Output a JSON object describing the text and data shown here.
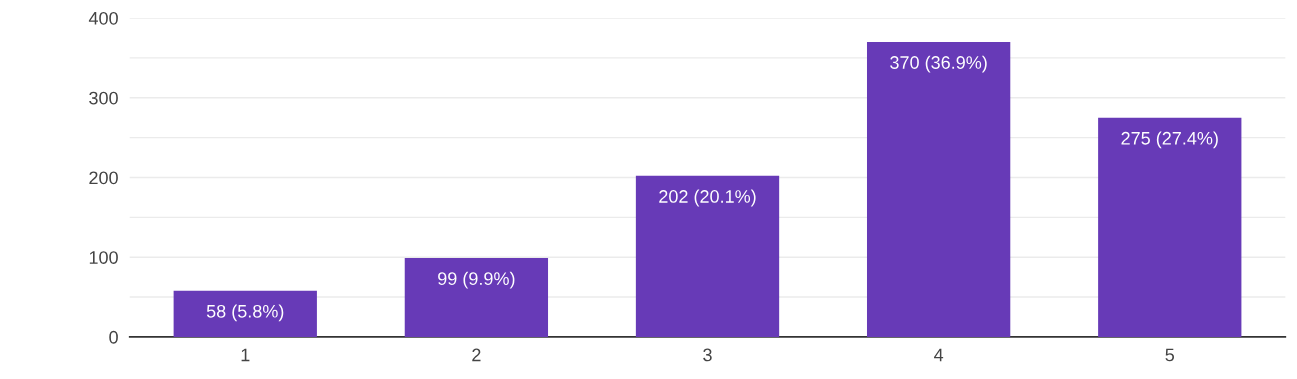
{
  "chart_data": {
    "type": "bar",
    "categories": [
      "1",
      "2",
      "3",
      "4",
      "5"
    ],
    "values": [
      58,
      99,
      202,
      370,
      275
    ],
    "value_labels": [
      "58 (5.8%)",
      "99 (9.9%)",
      "202 (20.1%)",
      "370 (36.9%)",
      "275 (27.4%)"
    ],
    "color": "#673ab7",
    "ylim": [
      0,
      400
    ],
    "yticks": [
      0,
      {
        "value": 50,
        "label": null
      },
      100,
      {
        "value": 150,
        "label": null
      },
      200,
      {
        "value": 250,
        "label": null
      },
      300,
      {
        "value": 350,
        "label": null
      },
      400
    ],
    "grid": "y"
  }
}
